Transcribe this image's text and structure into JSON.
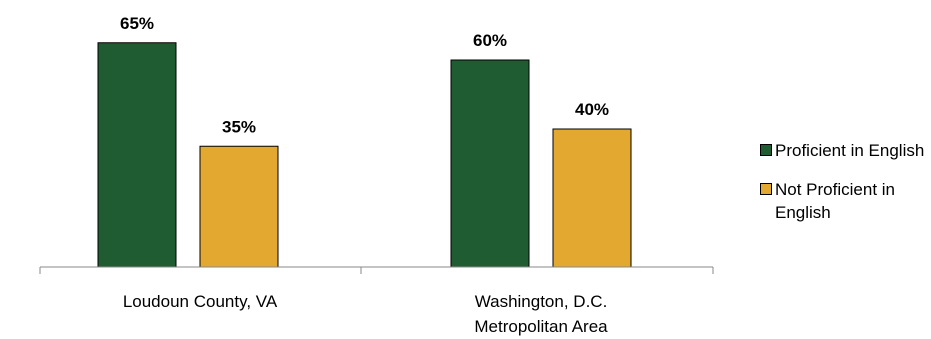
{
  "chart_data": {
    "type": "bar",
    "categories": [
      "Loudoun County, VA",
      "Washington, D.C. Metropolitan Area"
    ],
    "series": [
      {
        "name": "Proficient in English",
        "values": [
          65,
          60
        ],
        "labels": [
          "65%",
          "60%"
        ],
        "color": "#1f5c32"
      },
      {
        "name": "Not Proficient in English",
        "values": [
          35,
          40
        ],
        "labels": [
          "35%",
          "40%"
        ],
        "color": "#e3a82f"
      }
    ],
    "ylim": [
      0,
      70
    ],
    "grid": false,
    "legend": "right",
    "title": "",
    "xlabel": "",
    "ylabel": ""
  },
  "legend": {
    "items": [
      {
        "label": "Proficient in English",
        "color": "#1f5c32"
      },
      {
        "label": "Not Proficient in English",
        "color": "#e3a82f"
      }
    ]
  }
}
